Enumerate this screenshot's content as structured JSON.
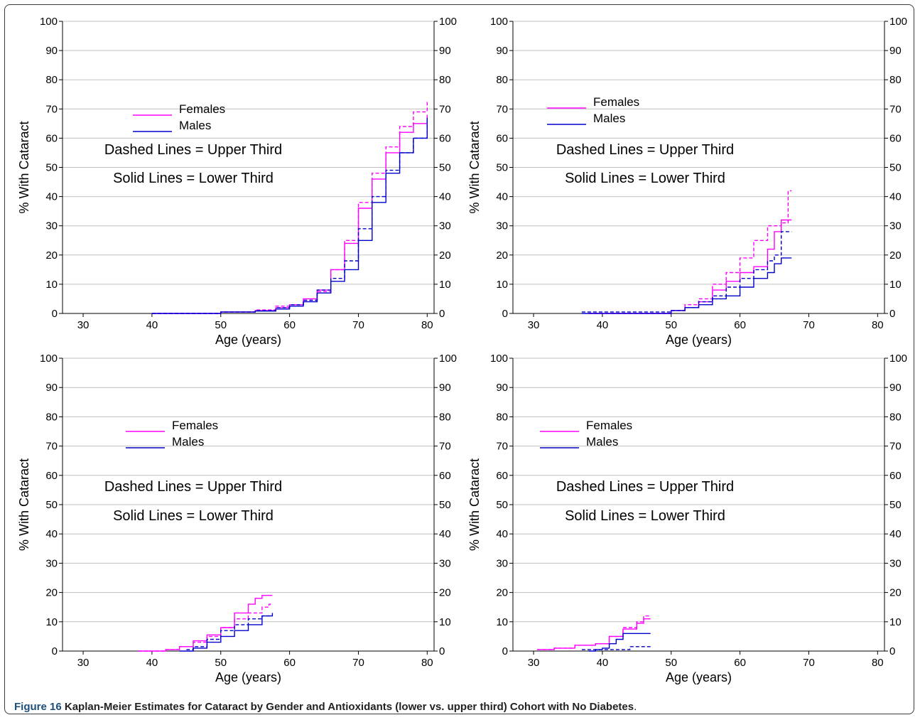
{
  "figure": {
    "label": "Figure 16",
    "title": "Kaplan-Meier Estimates for Cataract by Gender and Antioxidants (lower vs. upper third) Cohort with No Diabetes",
    "period": "."
  },
  "colors": {
    "females": "#ff00ff",
    "males": "#0000cc",
    "grid": "#c0c0c0",
    "axis": "#000000"
  },
  "chart_data": [
    {
      "type": "line",
      "xlabel": "Age (years)",
      "ylabel": "% With Cataract",
      "xlim": [
        27,
        81
      ],
      "ylim": [
        0,
        100
      ],
      "xticks": [
        30,
        40,
        50,
        60,
        70,
        80
      ],
      "yticks": [
        0,
        10,
        20,
        30,
        40,
        50,
        60,
        70,
        80,
        90,
        100
      ],
      "legend": [
        "Females",
        "Males"
      ],
      "notes": [
        "Dashed Lines = Upper Third",
        "Solid Lines = Lower Third"
      ],
      "series": [
        {
          "name": "Females",
          "style": "solid",
          "x": [
            40,
            45,
            50,
            55,
            58,
            60,
            62,
            64,
            66,
            68,
            70,
            72,
            74,
            76,
            78,
            80
          ],
          "y": [
            0,
            0,
            0.5,
            1,
            2,
            3,
            5,
            8,
            15,
            24,
            36,
            46,
            55,
            62,
            65,
            68
          ]
        },
        {
          "name": "Females",
          "style": "dashed",
          "x": [
            40,
            45,
            50,
            55,
            58,
            60,
            62,
            64,
            66,
            68,
            70,
            72,
            74,
            76,
            78,
            80
          ],
          "y": [
            0,
            0,
            0.5,
            1.2,
            2.5,
            3,
            4.5,
            7.5,
            15,
            25,
            38,
            48,
            57,
            64,
            69,
            73
          ]
        },
        {
          "name": "Males",
          "style": "solid",
          "x": [
            40,
            45,
            50,
            55,
            58,
            60,
            62,
            64,
            66,
            68,
            70,
            72,
            74,
            76,
            78,
            80
          ],
          "y": [
            0,
            0,
            0.5,
            0.8,
            1.5,
            2.5,
            4,
            7,
            11,
            15,
            25,
            38,
            48,
            55,
            60,
            67
          ]
        },
        {
          "name": "Males",
          "style": "dashed",
          "x": [
            40,
            45,
            50,
            55,
            58,
            60,
            62,
            64,
            66,
            68,
            70,
            72,
            74,
            76,
            78,
            80
          ],
          "y": [
            0,
            0,
            0.5,
            1,
            2,
            3,
            4.5,
            8,
            12,
            18,
            29,
            40,
            49,
            55,
            60,
            66
          ]
        }
      ]
    },
    {
      "type": "line",
      "xlabel": "Age (years)",
      "ylabel": "% With Cataract",
      "xlim": [
        27,
        81
      ],
      "ylim": [
        0,
        100
      ],
      "xticks": [
        30,
        40,
        50,
        60,
        70,
        80
      ],
      "yticks": [
        0,
        10,
        20,
        30,
        40,
        50,
        60,
        70,
        80,
        90,
        100
      ],
      "legend": [
        "Females",
        "Males"
      ],
      "notes": [
        "Dashed Lines = Upper Third",
        "Solid Lines = Lower Third"
      ],
      "series": [
        {
          "name": "Females",
          "style": "solid",
          "x": [
            38,
            45,
            50,
            52,
            54,
            56,
            58,
            60,
            62,
            64,
            65,
            66,
            67.5
          ],
          "y": [
            0,
            0,
            1,
            2,
            4,
            8,
            11,
            14,
            16,
            22,
            28,
            32,
            32
          ]
        },
        {
          "name": "Females",
          "style": "dashed",
          "x": [
            38,
            45,
            50,
            52,
            54,
            56,
            58,
            60,
            62,
            64,
            66,
            67,
            67.5
          ],
          "y": [
            0,
            0,
            1,
            3,
            5,
            10,
            14,
            19,
            25,
            30,
            31,
            42,
            42
          ]
        },
        {
          "name": "Males",
          "style": "solid",
          "x": [
            37,
            45,
            50,
            52,
            54,
            56,
            58,
            60,
            62,
            64,
            65,
            66,
            67.5
          ],
          "y": [
            0,
            0,
            1,
            2,
            3,
            5,
            6,
            9,
            12,
            14,
            17,
            19,
            19
          ]
        },
        {
          "name": "Males",
          "style": "dashed",
          "x": [
            37,
            45,
            50,
            52,
            54,
            56,
            58,
            60,
            62,
            64,
            65,
            66,
            67.5
          ],
          "y": [
            0.5,
            0.5,
            1,
            2,
            4,
            6,
            9,
            12,
            15,
            18,
            20,
            28,
            28
          ]
        }
      ]
    },
    {
      "type": "line",
      "xlabel": "Age (years)",
      "ylabel": "% With Cataract",
      "xlim": [
        27,
        81
      ],
      "ylim": [
        0,
        100
      ],
      "xticks": [
        30,
        40,
        50,
        60,
        70,
        80
      ],
      "yticks": [
        0,
        10,
        20,
        30,
        40,
        50,
        60,
        70,
        80,
        90,
        100
      ],
      "legend": [
        "Females",
        "Males"
      ],
      "notes": [
        "Dashed Lines = Upper Third",
        "Solid Lines = Lower Third"
      ],
      "series": [
        {
          "name": "Females",
          "style": "solid",
          "x": [
            38,
            42,
            44,
            46,
            48,
            50,
            52,
            54,
            55,
            56,
            57.5
          ],
          "y": [
            0,
            0.5,
            1.5,
            3.5,
            5.5,
            8,
            13,
            16,
            18,
            19,
            19
          ]
        },
        {
          "name": "Females",
          "style": "dashed",
          "x": [
            38,
            42,
            44,
            46,
            48,
            50,
            52,
            54,
            56,
            57,
            57.5
          ],
          "y": [
            0,
            0.5,
            1.5,
            3,
            5,
            8,
            11,
            13,
            15,
            16,
            16
          ]
        },
        {
          "name": "Males",
          "style": "solid",
          "x": [
            44,
            46,
            48,
            50,
            52,
            54,
            56,
            57.5
          ],
          "y": [
            0,
            1,
            3,
            5,
            7,
            9,
            12,
            13
          ]
        },
        {
          "name": "Males",
          "style": "dashed",
          "x": [
            45,
            46,
            48,
            50,
            52,
            54,
            56,
            57.5
          ],
          "y": [
            0.5,
            1.5,
            4,
            7,
            9,
            11,
            12,
            12
          ]
        }
      ]
    },
    {
      "type": "line",
      "xlabel": "Age (years)",
      "ylabel": "% With Cataract",
      "xlim": [
        27,
        81
      ],
      "ylim": [
        0,
        100
      ],
      "xticks": [
        30,
        40,
        50,
        60,
        70,
        80
      ],
      "yticks": [
        0,
        10,
        20,
        30,
        40,
        50,
        60,
        70,
        80,
        90,
        100
      ],
      "legend": [
        "Females",
        "Males"
      ],
      "notes": [
        "Dashed Lines = Upper Third",
        "Solid Lines = Lower Third"
      ],
      "series": [
        {
          "name": "Females",
          "style": "solid",
          "x": [
            30.5,
            33,
            36,
            39,
            41,
            43,
            45,
            46,
            47
          ],
          "y": [
            0.5,
            1,
            2,
            2.5,
            5,
            7.5,
            9.5,
            11,
            11
          ]
        },
        {
          "name": "Females",
          "style": "dashed",
          "x": [
            30.5,
            33,
            36,
            39,
            41,
            43,
            45,
            46,
            47
          ],
          "y": [
            0.5,
            1,
            2,
            2.5,
            5,
            8,
            10,
            12,
            12
          ]
        },
        {
          "name": "Males",
          "style": "solid",
          "x": [
            38,
            39,
            40,
            41,
            42,
            43,
            47
          ],
          "y": [
            0,
            0.5,
            1,
            2.5,
            4,
            6,
            6
          ]
        },
        {
          "name": "Males",
          "style": "dashed",
          "x": [
            37,
            40,
            44,
            47
          ],
          "y": [
            0.5,
            0.5,
            1.5,
            1.5
          ]
        }
      ]
    }
  ]
}
